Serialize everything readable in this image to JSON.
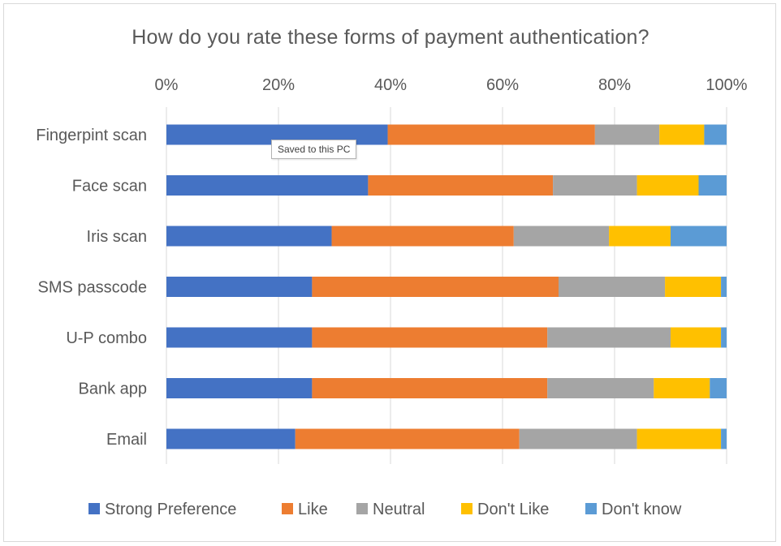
{
  "chart_data": {
    "type": "bar",
    "orientation": "horizontal",
    "stacked": "percent",
    "title": "How do you rate these forms of payment authentication?",
    "categories": [
      "Fingerpint scan",
      "Face scan",
      "Iris scan",
      "SMS passcode",
      "U-P combo",
      "Bank app",
      "Email"
    ],
    "series": [
      {
        "name": "Strong Preference",
        "color": "#4472C4",
        "values": [
          39.5,
          36,
          29.5,
          26,
          26,
          26,
          23
        ]
      },
      {
        "name": "Like",
        "color": "#ED7D31",
        "values": [
          37,
          33,
          32.5,
          44,
          42,
          42,
          40
        ]
      },
      {
        "name": "Neutral",
        "color": "#A5A5A5",
        "values": [
          11.5,
          15,
          17,
          19,
          22,
          19,
          21
        ]
      },
      {
        "name": "Don't Like",
        "color": "#FFC000",
        "values": [
          8,
          11,
          11,
          10,
          9,
          10,
          15
        ]
      },
      {
        "name": "Don't know",
        "color": "#5B9BD5",
        "values": [
          4,
          5,
          10,
          1,
          1,
          3,
          1
        ]
      }
    ],
    "xlim": [
      0,
      100
    ],
    "x_ticks": [
      "0%",
      "20%",
      "40%",
      "60%",
      "80%",
      "100%"
    ],
    "x_axis_position": "top",
    "grid": true,
    "legend": "bottom"
  },
  "tooltip": {
    "text": "Saved to this PC"
  },
  "colors": {
    "gridline": "#d9d9d9",
    "axis_text": "#595959"
  }
}
